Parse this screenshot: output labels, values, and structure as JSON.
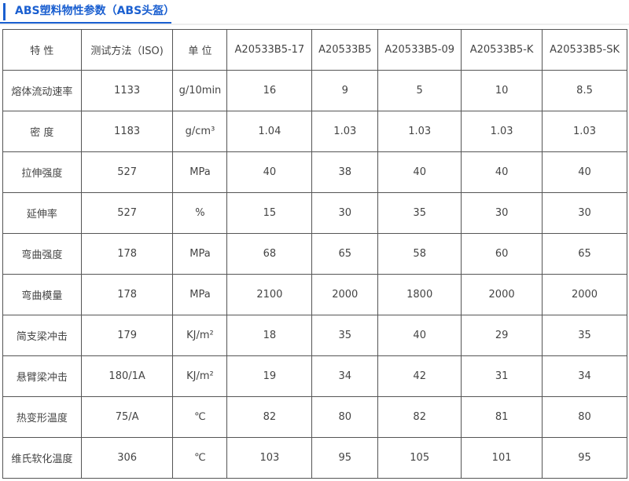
{
  "title": "ABS塑料物性参数（ABS头盔）",
  "header": [
    "特 性",
    "测试方法（ISO)",
    "单 位",
    "A20533B5-17",
    "A20533B5",
    "A20533B5-09",
    "A20533B5-K",
    "A20533B5-SK"
  ],
  "rows": [
    [
      "熔体流动速率",
      "1133",
      "g/10min",
      "16",
      "9",
      "5",
      "10",
      "8.5"
    ],
    [
      "密 度",
      "1183",
      "g/cm³",
      "1.04",
      "1.03",
      "1.03",
      "1.03",
      "1.03"
    ],
    [
      "拉伸强度",
      "527",
      "MPa",
      "40",
      "38",
      "40",
      "40",
      "40"
    ],
    [
      "延伸率",
      "527",
      "%",
      "15",
      "30",
      "35",
      "30",
      "30"
    ],
    [
      "弯曲强度",
      "178",
      "MPa",
      "68",
      "65",
      "58",
      "60",
      "65"
    ],
    [
      "弯曲模量",
      "178",
      "MPa",
      "2100",
      "2000",
      "1800",
      "2000",
      "2000"
    ],
    [
      "简支梁冲击",
      "179",
      "KJ/m²",
      "18",
      "35",
      "40",
      "29",
      "35"
    ],
    [
      "悬臂梁冲击",
      "180/1A",
      "KJ/m²",
      "19",
      "34",
      "42",
      "31",
      "34"
    ],
    [
      "热变形温度",
      "75/A",
      "℃",
      "82",
      "80",
      "82",
      "81",
      "80"
    ],
    [
      "维氏软化温度",
      "306",
      "℃",
      "103",
      "95",
      "105",
      "101",
      "95"
    ]
  ]
}
